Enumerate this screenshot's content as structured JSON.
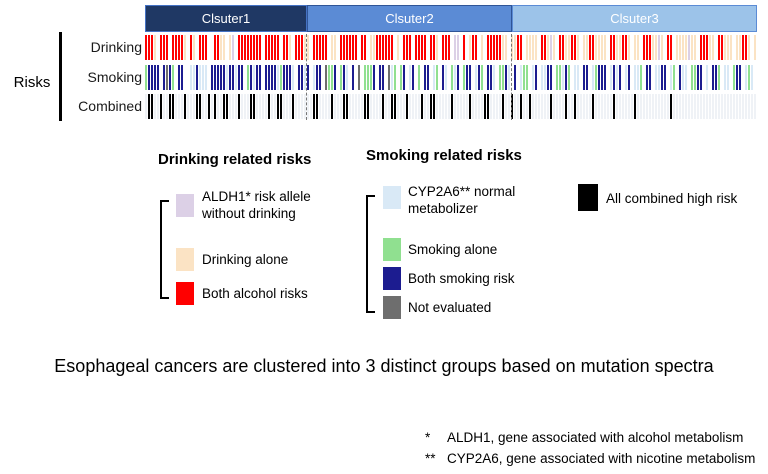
{
  "chart_data": {
    "type": "heatmap",
    "title": "Esophageal cancers are clustered into 3 distinct groups based on mutation spectra",
    "clusters": [
      {
        "label": "Clsuter1",
        "samples": 54,
        "header_color": "#1F3864"
      },
      {
        "label": "Clsuter2",
        "samples": 68,
        "header_color": "#5B8BD5"
      },
      {
        "label": "Clsuter3",
        "samples": 82,
        "header_color": "#9CC3E9"
      }
    ],
    "axis_group_label": "Risks",
    "rows": [
      {
        "label": "Drinking",
        "pattern": "RRRPWRRRWRRRRPWRPWRRRWWRRPPWPLWRRRRRRRRWRRRRRWRRPWRRRPPWRRRRRWPPWRRRRRRWRRWPPRRRRRRWPWRRRWRRRRWRRPWRRRWLLWRWPRRWPWRRRRRPPWPPRRWPPPPWRRPLPWRRPPRRPWPPRRPPPPWRRPPRRPWPPWRRRPPLPWRRWPPPPLPPWRRRPPWRRPPPWPPRRPWP"
      },
      {
        "label": "Smoking",
        "pattern": "GNNNNWNYNGWNNWWBBNBBBWNNNNNBNNBNNWGNBNNWNNNNBGNNNBWNNBNWBNNWYGGNWGNBWNWYWGGGNWNNWYBGWGNWBNWGWNNWBGWNBWGBNWGNNWBNGWNNBWGGNBWNWBGGWBNWBBNNWGGBNGWBBWNNWBGNNNWBNBNWBNWBBGWNNWBBNNWBGWNBBWGGNNWBWNNGWBBWGNNWBGBW"
      },
      {
        "label": "Combined",
        "pattern": "SKKSSKSSKKSSSKSSSKKSSKSKSSKKSSSKSSSKKSSSSKSSKKSSSKSSSSSSKKSSSSKSSSKKSSSSSKKSSSSKSSKKSSSKSSSSKSSKKSSSSSKSSSSSKSSSSKKSSSSKSSKSSKSSKSSSSSSKSSSSKSSKSSSSSKSSSSSSKSSSSSSKSSSSSSSSSSSKSSSSSSSSSSSSSSSSSSSSSSSSSSSS"
      }
    ],
    "color_codes": {
      "R": {
        "hex": "#FF0000",
        "meaning": "Both alcohol risks"
      },
      "P": {
        "hex": "#FBE3C4",
        "meaning": "Drinking alone"
      },
      "L": {
        "hex": "#DCD0E6",
        "meaning": "ALDH1* risk allele without drinking"
      },
      "N": {
        "hex": "#1C1C90",
        "meaning": "Both smoking risk"
      },
      "G": {
        "hex": "#90E090",
        "meaning": "Smoking alone"
      },
      "B": {
        "hex": "#D9E9F6",
        "meaning": "CYP2A6** normal metabolizer"
      },
      "Y": {
        "hex": "#6E6E6E",
        "meaning": "Not evaluated"
      },
      "K": {
        "hex": "#000000",
        "meaning": "All combined high risk"
      },
      "W": {
        "hex": "transparent",
        "meaning": "none"
      },
      "S": {
        "hex": "#EFF2F6",
        "meaning": "background stripe"
      }
    },
    "legend_position": "below"
  },
  "legends": {
    "drinking": {
      "title": "Drinking related risks",
      "items": [
        {
          "label": "ALDH1* risk allele without drinking",
          "color": "#DCD0E6"
        },
        {
          "label": "Drinking alone",
          "color": "#FBE3C4"
        },
        {
          "label": "Both alcohol risks",
          "color": "#FF0000"
        }
      ]
    },
    "smoking": {
      "title": "Smoking related risks",
      "items": [
        {
          "label": "CYP2A6** normal metabolizer",
          "color": "#D9E9F6"
        },
        {
          "label": "Smoking alone",
          "color": "#90E090"
        },
        {
          "label": "Both smoking risk",
          "color": "#1C1C90"
        },
        {
          "label": "Not evaluated",
          "color": "#6E6E6E"
        }
      ]
    },
    "combined": {
      "items": [
        {
          "label": "All combined high risk",
          "color": "#000000"
        }
      ]
    }
  },
  "footnotes": [
    {
      "mark": "*",
      "text": "ALDH1, gene associated with alcohol metabolism"
    },
    {
      "mark": "**",
      "text": "CYP2A6, gene associated with nicotine metabolism"
    }
  ]
}
